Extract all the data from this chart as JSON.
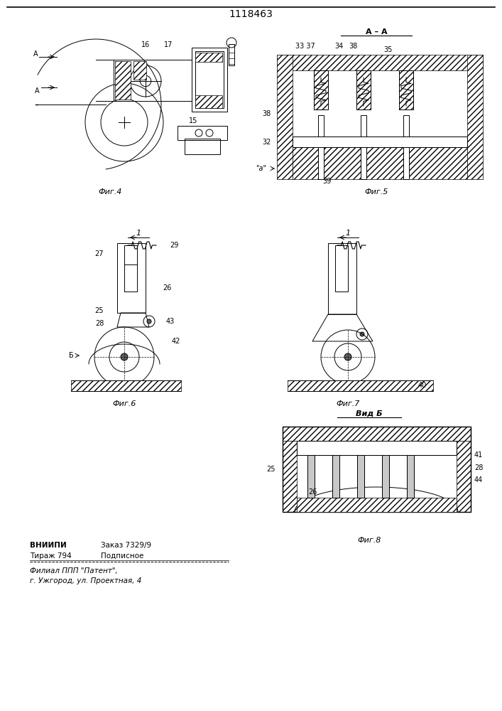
{
  "title": "1118463",
  "background_color": "#ffffff",
  "line_color": "#000000",
  "fig_labels": {
    "fig4": "Фиг.4",
    "fig5": "Фиг.5",
    "fig6": "Фиг.6",
    "fig7": "Фиг.7",
    "fig8": "Фиг.8",
    "vidB": "Вид Б"
  },
  "bottom_text": {
    "line1_left": "ВНИИПИ",
    "line1_right": "Заказ 7329/9",
    "line2_left": "Тираж 794",
    "line2_right": "Подписное",
    "line3": "Филиал ППП \"Патент\",",
    "line4": "г. Ужгород, ул. Проектная, 4"
  }
}
